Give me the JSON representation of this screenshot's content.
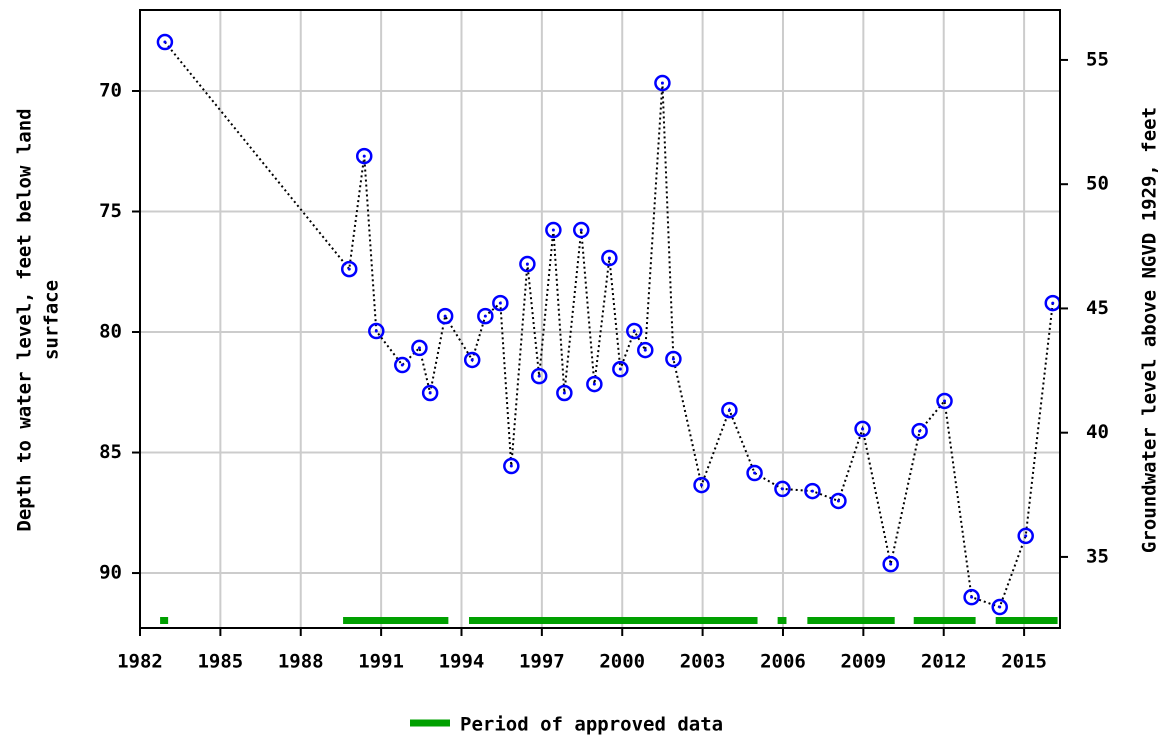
{
  "chart_data": {
    "type": "line",
    "y_label": [
      "Depth to water level, feet below land",
      "surface"
    ],
    "y2_label": "Groundwater level above NGVD 1929, feet",
    "x": [
      1982.93,
      1989.81,
      1990.37,
      1990.82,
      1991.79,
      1992.43,
      1992.83,
      1993.39,
      1994.4,
      1994.89,
      1995.45,
      1995.86,
      1996.46,
      1996.9,
      1997.43,
      1997.84,
      1998.47,
      1998.96,
      1999.52,
      1999.93,
      2000.45,
      2000.86,
      2001.5,
      2001.91,
      2002.96,
      2004.0,
      2004.94,
      2005.98,
      2007.1,
      2008.07,
      2008.97,
      2010.02,
      2011.1,
      2012.03,
      2013.04,
      2014.09,
      2015.06,
      2016.07
    ],
    "values": [
      67.97,
      77.39,
      72.7,
      79.96,
      81.37,
      80.66,
      82.53,
      79.34,
      81.16,
      79.34,
      78.8,
      85.56,
      77.18,
      81.83,
      75.77,
      82.53,
      75.77,
      82.16,
      76.93,
      81.54,
      79.96,
      80.75,
      69.67,
      81.12,
      86.35,
      83.24,
      85.85,
      86.51,
      86.6,
      87.01,
      84.02,
      89.63,
      84.11,
      82.86,
      91.0,
      91.41,
      88.46,
      78.8
    ],
    "color": "#0000ff",
    "line_color": "#000000",
    "xlim": [
      1982,
      2016.34
    ],
    "xticks": [
      1982,
      1985,
      1988,
      1991,
      1994,
      1997,
      2000,
      2003,
      2006,
      2009,
      2012,
      2015
    ],
    "ylim": [
      66.64,
      92.28
    ],
    "yticks": [
      70,
      75,
      80,
      85,
      90
    ],
    "y_inverted": true,
    "y2lim": [
      32.14,
      57.01
    ],
    "y2ticks": [
      35,
      40,
      45,
      50,
      55
    ],
    "grid": true,
    "approved_periods": [
      [
        1982.75,
        1983.05
      ],
      [
        1989.58,
        1993.51
      ],
      [
        1994.28,
        2005.05
      ],
      [
        2005.8,
        2006.13
      ],
      [
        2006.91,
        2010.17
      ],
      [
        2010.88,
        2013.19
      ],
      [
        2013.94,
        2016.25
      ]
    ],
    "approved_color": "#00a000",
    "approved_label": "Period of approved data",
    "legend": "bottom"
  }
}
